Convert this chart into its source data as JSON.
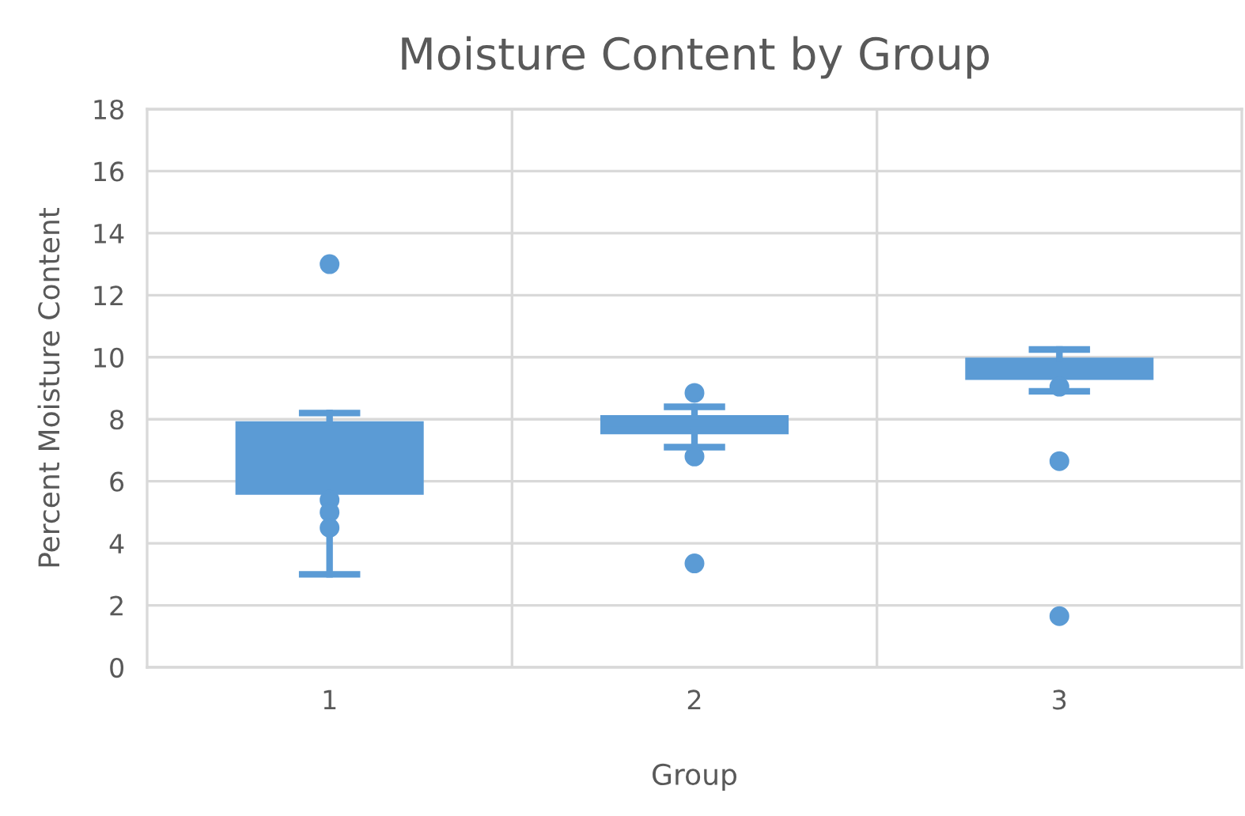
{
  "chart_data": {
    "type": "box",
    "title": "Moisture Content by Group",
    "xlabel": "Group",
    "ylabel": "Percent Moisture Content",
    "categories": [
      "1",
      "2",
      "3"
    ],
    "ylim": [
      0,
      18
    ],
    "yticks": [
      0,
      2,
      4,
      6,
      8,
      10,
      12,
      14,
      16,
      18
    ],
    "grid": true,
    "series": [
      {
        "color": "#5b9bd5",
        "boxes": [
          {
            "low": 3.0,
            "q1": 5.6,
            "median": 7.0,
            "q3": 7.9,
            "high": 8.2,
            "outliers": [
              13.0
            ]
          },
          {
            "low": 7.1,
            "q1": 7.55,
            "median": 7.8,
            "q3": 8.1,
            "high": 8.4,
            "outliers": [
              8.85,
              6.8,
              3.35
            ]
          },
          {
            "low": 8.9,
            "q1": 9.3,
            "median": 9.7,
            "q3": 9.95,
            "high": 10.25,
            "outliers": [
              9.05,
              6.65,
              1.65
            ]
          }
        ]
      },
      {
        "type": "scatter",
        "color": "#5b9bd5",
        "marker": "circle",
        "x": [
          "1",
          "1",
          "1",
          "2"
        ],
        "values": [
          5.4,
          5.0,
          4.5,
          null
        ]
      }
    ]
  }
}
